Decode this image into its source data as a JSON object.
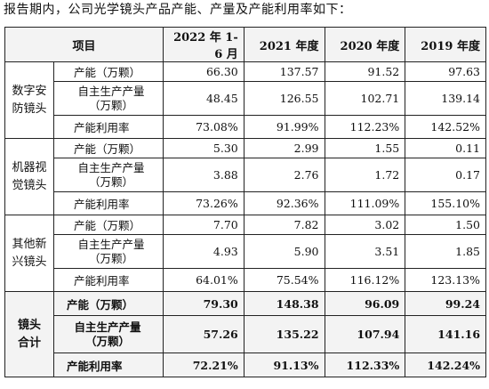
{
  "intro": "报告期内，公司光学镜头产品产能、产量及产能利用率如下：",
  "header": {
    "item": "项目",
    "years": [
      "2022 年 1-6 月",
      "2021 年度",
      "2020 年度",
      "2019 年度"
    ]
  },
  "groups": [
    {
      "name_line1": "数字安",
      "name_line2": "防镜头",
      "capacity_label": "产能（万颗）",
      "output_label_line1": "自主生产产量",
      "output_label_line2": "（万颗）",
      "util_label": "产能利用率",
      "capacity": [
        "66.30",
        "137.57",
        "91.52",
        "97.63"
      ],
      "output": [
        "48.45",
        "126.55",
        "102.71",
        "139.14"
      ],
      "util": [
        "73.08%",
        "91.99%",
        "112.23%",
        "142.52%"
      ]
    },
    {
      "name_line1": "机器视",
      "name_line2": "觉镜头",
      "capacity_label": "产能（万颗）",
      "output_label_line1": "自主生产产量",
      "output_label_line2": "（万颗）",
      "util_label": "产能利用率",
      "capacity": [
        "5.30",
        "2.99",
        "1.55",
        "0.11"
      ],
      "output": [
        "3.88",
        "2.76",
        "1.72",
        "0.17"
      ],
      "util": [
        "73.26%",
        "92.36%",
        "111.09%",
        "155.10%"
      ]
    },
    {
      "name_line1": "其他新",
      "name_line2": "兴镜头",
      "capacity_label": "产能（万颗）",
      "output_label_line1": "自主生产产量",
      "output_label_line2": "（万颗）",
      "util_label": "产能利用率",
      "capacity": [
        "7.70",
        "7.82",
        "3.02",
        "1.50"
      ],
      "output": [
        "4.93",
        "5.90",
        "3.51",
        "1.85"
      ],
      "util": [
        "64.01%",
        "75.54%",
        "116.12%",
        "123.13%"
      ]
    }
  ],
  "total": {
    "name_line1": "镜头",
    "name_line2": "合计",
    "capacity_label": "产能（万颗）",
    "output_label_line1": "自主生产产量",
    "output_label_line2": "（万颗）",
    "util_label": "产能利用率",
    "capacity": [
      "79.30",
      "148.38",
      "96.09",
      "99.24"
    ],
    "output": [
      "57.26",
      "135.22",
      "107.94",
      "141.16"
    ],
    "util": [
      "72.21%",
      "91.13%",
      "112.33%",
      "142.24%"
    ]
  }
}
